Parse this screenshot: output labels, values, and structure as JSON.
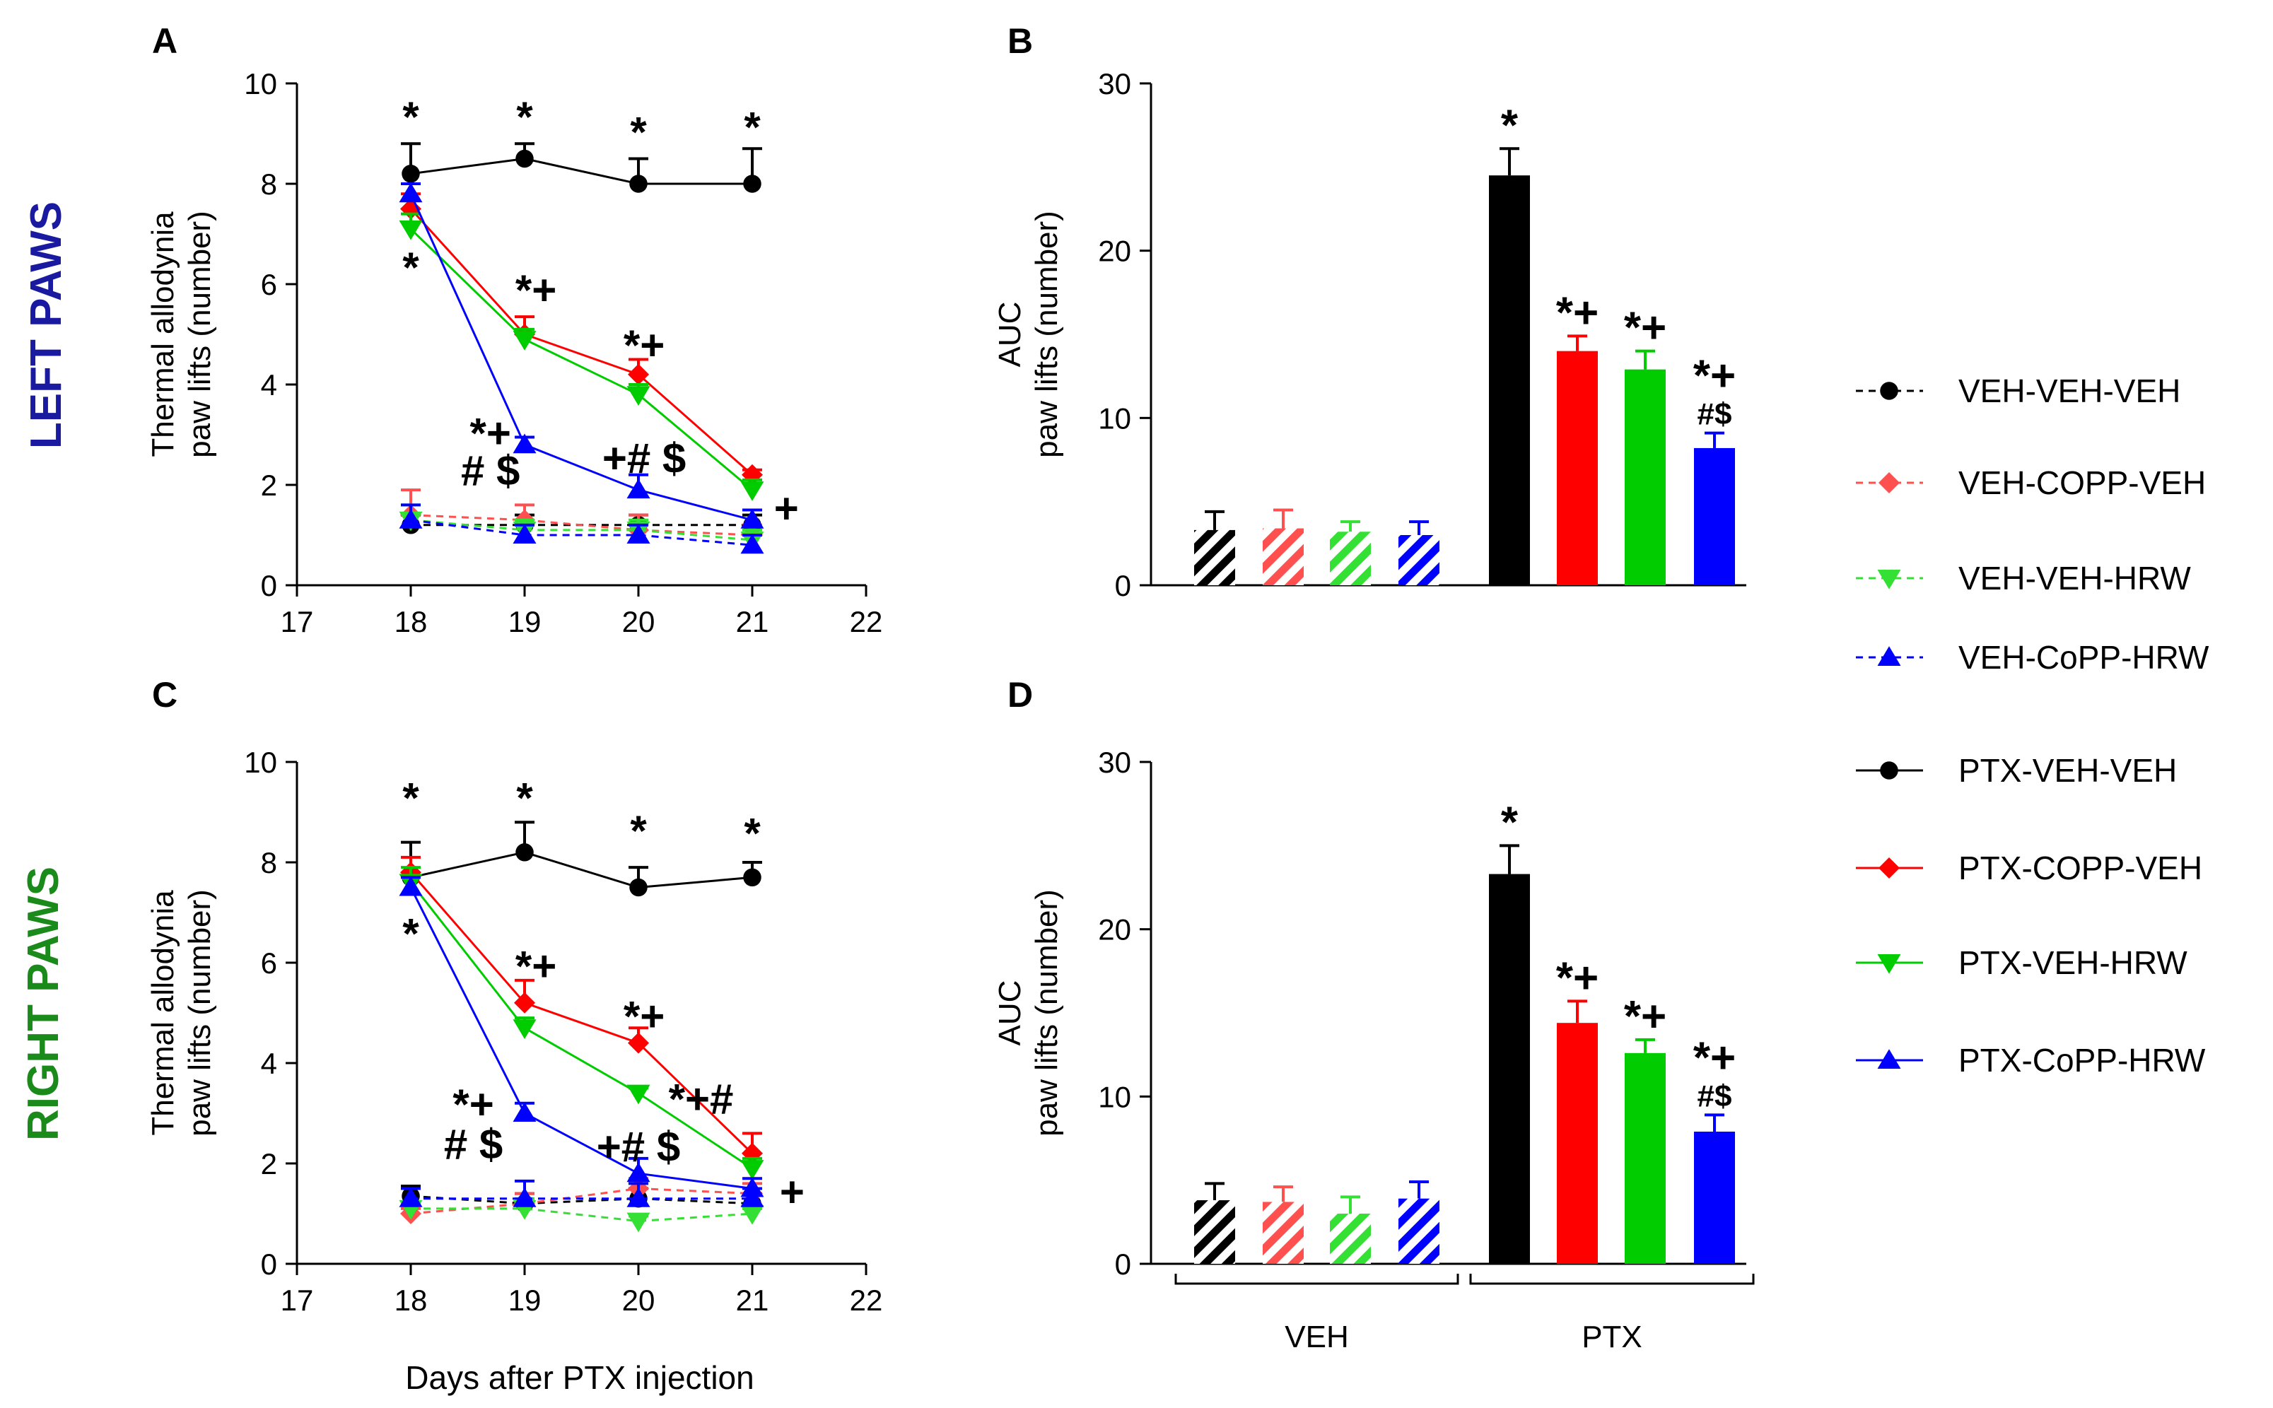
{
  "figure": {
    "row_labels": {
      "left": "LEFT PAWS",
      "right": "RIGHT PAWS"
    },
    "shared_xlabel": "Days after PTX injection",
    "colors": {
      "black": "#000000",
      "red": "#ff0000",
      "green": "#00cc00",
      "blue": "#0000ff",
      "left_paws_label": "#1a1aa0",
      "right_paws_label": "#1a8a1a",
      "light_red": "#ff5050",
      "light_green": "#33e033",
      "light_blue": "#3030ff"
    }
  },
  "legend": {
    "entries": [
      {
        "label": "VEH-VEH-VEH",
        "color": "#000000",
        "marker": "circle",
        "dashed": true
      },
      {
        "label": "VEH-COPP-VEH",
        "color": "#ff5050",
        "marker": "diamond",
        "dashed": true
      },
      {
        "label": "VEH-VEH-HRW",
        "color": "#33e033",
        "marker": "triangle-down",
        "dashed": true
      },
      {
        "label": "VEH-CoPP-HRW",
        "color": "#0000ff",
        "marker": "triangle-up",
        "dashed": true
      },
      {
        "label": "PTX-VEH-VEH",
        "color": "#000000",
        "marker": "circle",
        "dashed": false
      },
      {
        "label": "PTX-COPP-VEH",
        "color": "#ff0000",
        "marker": "diamond",
        "dashed": false
      },
      {
        "label": "PTX-VEH-HRW",
        "color": "#00cc00",
        "marker": "triangle-down",
        "dashed": false
      },
      {
        "label": "PTX-CoPP-HRW",
        "color": "#0000ff",
        "marker": "triangle-up",
        "dashed": false
      }
    ]
  },
  "chart_data": [
    {
      "panel": "A",
      "type": "line",
      "ylabel_lines": [
        "Thermal allodynia",
        "paw lifts (number)"
      ],
      "xlim": [
        17,
        22
      ],
      "ylim": [
        0,
        10
      ],
      "xticks": [
        "17",
        "18",
        "19",
        "20",
        "21",
        "22"
      ],
      "yticks": [
        "0",
        "2",
        "4",
        "6",
        "8",
        "10"
      ],
      "x": [
        18,
        19,
        20,
        21
      ],
      "series": [
        {
          "name": "VEH-VEH-VEH",
          "color": "#000000",
          "marker": "circle",
          "dashed": true,
          "values": [
            1.2,
            1.2,
            1.2,
            1.2
          ],
          "errors": [
            0.2,
            0.2,
            0.2,
            0.2
          ]
        },
        {
          "name": "VEH-COPP-VEH",
          "color": "#ff5050",
          "marker": "diamond",
          "dashed": true,
          "values": [
            1.4,
            1.3,
            1.1,
            1.0
          ],
          "errors": [
            0.5,
            0.3,
            0.3,
            0.2
          ]
        },
        {
          "name": "VEH-VEH-HRW",
          "color": "#33e033",
          "marker": "triangle-down",
          "dashed": true,
          "values": [
            1.3,
            1.1,
            1.1,
            0.9
          ],
          "errors": [
            0.3,
            0.2,
            0.2,
            0.2
          ]
        },
        {
          "name": "VEH-CoPP-HRW",
          "color": "#0000ff",
          "marker": "triangle-up",
          "dashed": true,
          "values": [
            1.3,
            1.0,
            1.0,
            0.8
          ],
          "errors": [
            0.3,
            0.2,
            0.2,
            0.2
          ]
        },
        {
          "name": "PTX-VEH-VEH",
          "color": "#000000",
          "marker": "circle",
          "dashed": false,
          "values": [
            8.2,
            8.5,
            8.0,
            8.0
          ],
          "errors": [
            0.6,
            0.3,
            0.5,
            0.7
          ]
        },
        {
          "name": "PTX-COPP-VEH",
          "color": "#ff0000",
          "marker": "diamond",
          "dashed": false,
          "values": [
            7.5,
            5.0,
            4.2,
            2.2
          ],
          "errors": [
            0.3,
            0.35,
            0.3,
            0.1
          ]
        },
        {
          "name": "PTX-VEH-HRW",
          "color": "#00cc00",
          "marker": "triangle-down",
          "dashed": false,
          "values": [
            7.1,
            4.9,
            3.8,
            1.9
          ],
          "errors": [
            0.3,
            0.2,
            0.2,
            0.2
          ]
        },
        {
          "name": "PTX-CoPP-HRW",
          "color": "#0000ff",
          "marker": "triangle-up",
          "dashed": false,
          "values": [
            7.8,
            2.8,
            1.9,
            1.3
          ],
          "errors": [
            0.2,
            0.15,
            0.3,
            0.2
          ]
        }
      ],
      "annotations": [
        {
          "text": "*",
          "x": 18,
          "y": 9.35
        },
        {
          "text": "*",
          "x": 19,
          "y": 9.35
        },
        {
          "text": "*",
          "x": 20,
          "y": 9.05
        },
        {
          "text": "*",
          "x": 21,
          "y": 9.15
        },
        {
          "text": "*",
          "x": 18,
          "y": 6.35
        },
        {
          "text": "*+",
          "x": 19.1,
          "y": 5.9
        },
        {
          "text": "*+",
          "x": 20.05,
          "y": 4.8
        },
        {
          "text": "*+",
          "x": 18.7,
          "y": 3.05
        },
        {
          "text": "# $",
          "x": 18.7,
          "y": 2.3
        },
        {
          "text": "+# $",
          "x": 20.05,
          "y": 2.55
        },
        {
          "text": "+",
          "x": 21.3,
          "y": 1.55
        }
      ]
    },
    {
      "panel": "B",
      "type": "bar",
      "ylabel_lines": [
        "AUC",
        "paw lifts (number)"
      ],
      "ylim": [
        0,
        30
      ],
      "yticks": [
        "0",
        "10",
        "20",
        "30"
      ],
      "categories": [
        "VEH-VEH-VEH",
        "VEH-COPP-VEH",
        "VEH-VEH-HRW",
        "VEH-CoPP-HRW",
        "PTX-VEH-VEH",
        "PTX-COPP-VEH",
        "PTX-VEH-HRW",
        "PTX-CoPP-HRW"
      ],
      "values": [
        3.3,
        3.4,
        3.2,
        3.0,
        24.5,
        14.0,
        12.9,
        8.2
      ],
      "errors": [
        1.1,
        1.1,
        0.6,
        0.8,
        1.6,
        0.9,
        1.1,
        0.9
      ],
      "colors": [
        "#000000",
        "#ff5050",
        "#33e033",
        "#0000ff",
        "#000000",
        "#ff0000",
        "#00cc00",
        "#0000ff"
      ],
      "hatched": [
        true,
        true,
        true,
        true,
        false,
        false,
        false,
        false
      ],
      "bar_annotations": [
        {
          "index": 4,
          "lines": [
            "*"
          ]
        },
        {
          "index": 5,
          "lines": [
            "*+"
          ]
        },
        {
          "index": 6,
          "lines": [
            "*+"
          ]
        },
        {
          "index": 7,
          "lines": [
            "*+",
            "#$"
          ]
        }
      ]
    },
    {
      "panel": "C",
      "type": "line",
      "ylabel_lines": [
        "Thermal allodynia",
        "paw lifts (number)"
      ],
      "xlabel": "Days after PTX injection",
      "xlim": [
        17,
        22
      ],
      "ylim": [
        0,
        10
      ],
      "xticks": [
        "17",
        "18",
        "19",
        "20",
        "21",
        "22"
      ],
      "yticks": [
        "0",
        "2",
        "4",
        "6",
        "8",
        "10"
      ],
      "x": [
        18,
        19,
        20,
        21
      ],
      "series": [
        {
          "name": "VEH-VEH-VEH",
          "color": "#000000",
          "marker": "circle",
          "dashed": true,
          "values": [
            1.35,
            1.2,
            1.3,
            1.2
          ],
          "errors": [
            0.2,
            0.2,
            0.2,
            0.2
          ]
        },
        {
          "name": "VEH-COPP-VEH",
          "color": "#ff5050",
          "marker": "diamond",
          "dashed": true,
          "values": [
            1.0,
            1.2,
            1.5,
            1.4
          ],
          "errors": [
            0.1,
            0.2,
            0.2,
            0.2
          ]
        },
        {
          "name": "VEH-VEH-HRW",
          "color": "#33e033",
          "marker": "triangle-down",
          "dashed": true,
          "values": [
            1.1,
            1.1,
            0.85,
            1.0
          ],
          "errors": [
            0.1,
            0.2,
            0.1,
            0.1
          ]
        },
        {
          "name": "VEH-CoPP-HRW",
          "color": "#0000ff",
          "marker": "triangle-up",
          "dashed": true,
          "values": [
            1.3,
            1.3,
            1.3,
            1.3
          ],
          "errors": [
            0.2,
            0.35,
            0.3,
            0.2
          ]
        },
        {
          "name": "PTX-VEH-VEH",
          "color": "#000000",
          "marker": "circle",
          "dashed": false,
          "values": [
            7.7,
            8.2,
            7.5,
            7.7
          ],
          "errors": [
            0.7,
            0.6,
            0.4,
            0.3
          ]
        },
        {
          "name": "PTX-COPP-VEH",
          "color": "#ff0000",
          "marker": "diamond",
          "dashed": false,
          "values": [
            7.8,
            5.2,
            4.4,
            2.2
          ],
          "errors": [
            0.3,
            0.45,
            0.3,
            0.4
          ]
        },
        {
          "name": "PTX-VEH-HRW",
          "color": "#00cc00",
          "marker": "triangle-down",
          "dashed": false,
          "values": [
            7.6,
            4.7,
            3.4,
            1.9
          ],
          "errors": [
            0.3,
            0.2,
            0.1,
            0.2
          ]
        },
        {
          "name": "PTX-CoPP-HRW",
          "color": "#0000ff",
          "marker": "triangle-up",
          "dashed": false,
          "values": [
            7.5,
            3.0,
            1.8,
            1.5
          ],
          "errors": [
            0.2,
            0.2,
            0.3,
            0.2
          ]
        }
      ],
      "annotations": [
        {
          "text": "*",
          "x": 18,
          "y": 9.3
        },
        {
          "text": "*",
          "x": 19,
          "y": 9.3
        },
        {
          "text": "*",
          "x": 20,
          "y": 8.65
        },
        {
          "text": "*",
          "x": 21,
          "y": 8.6
        },
        {
          "text": "*",
          "x": 18,
          "y": 6.6
        },
        {
          "text": "*+",
          "x": 19.1,
          "y": 5.95
        },
        {
          "text": "*+",
          "x": 20.05,
          "y": 4.95
        },
        {
          "text": "*+#",
          "x": 20.55,
          "y": 3.3
        },
        {
          "text": "*+",
          "x": 18.55,
          "y": 3.2
        },
        {
          "text": "# $",
          "x": 18.55,
          "y": 2.4
        },
        {
          "text": "+# $",
          "x": 20.0,
          "y": 2.35
        },
        {
          "text": "+",
          "x": 21.35,
          "y": 1.45
        }
      ]
    },
    {
      "panel": "D",
      "type": "bar",
      "ylabel_lines": [
        "AUC",
        "paw lifts (number)"
      ],
      "ylim": [
        0,
        30
      ],
      "yticks": [
        "0",
        "10",
        "20",
        "30"
      ],
      "categories": [
        "VEH-VEH-VEH",
        "VEH-COPP-VEH",
        "VEH-VEH-HRW",
        "VEH-CoPP-HRW",
        "PTX-VEH-VEH",
        "PTX-COPP-VEH",
        "PTX-VEH-HRW",
        "PTX-CoPP-HRW"
      ],
      "values": [
        3.8,
        3.7,
        3.0,
        3.9,
        23.3,
        14.4,
        12.6,
        7.9
      ],
      "errors": [
        1.0,
        0.9,
        1.0,
        1.0,
        1.7,
        1.3,
        0.8,
        1.0
      ],
      "colors": [
        "#000000",
        "#ff5050",
        "#33e033",
        "#0000ff",
        "#000000",
        "#ff0000",
        "#00cc00",
        "#0000ff"
      ],
      "hatched": [
        true,
        true,
        true,
        true,
        false,
        false,
        false,
        false
      ],
      "groups": [
        {
          "label": "VEH",
          "from": 0,
          "to": 3
        },
        {
          "label": "PTX",
          "from": 4,
          "to": 7
        }
      ],
      "bar_annotations": [
        {
          "index": 4,
          "lines": [
            "*"
          ]
        },
        {
          "index": 5,
          "lines": [
            "*+"
          ]
        },
        {
          "index": 6,
          "lines": [
            "*+"
          ]
        },
        {
          "index": 7,
          "lines": [
            "*+",
            "#$"
          ]
        }
      ]
    }
  ]
}
